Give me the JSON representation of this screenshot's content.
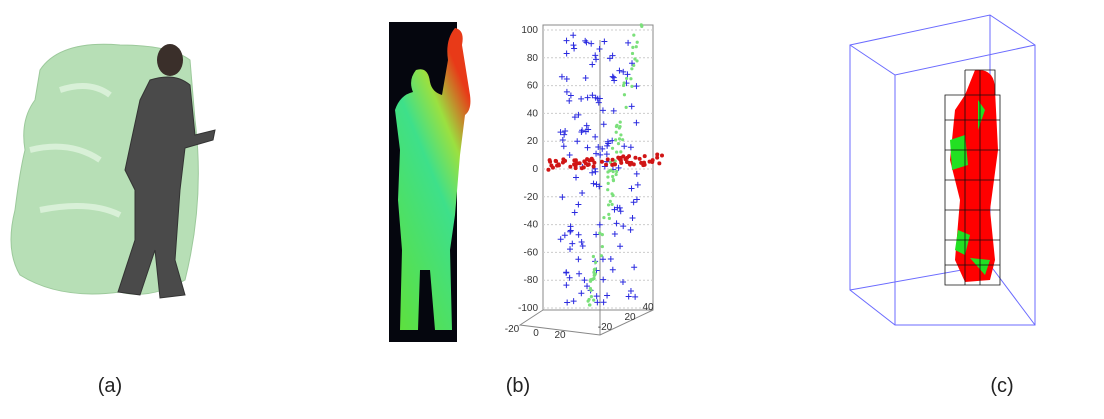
{
  "panels": [
    {
      "caption": "(a)"
    },
    {
      "caption": "(b)",
      "plot": {
        "yticks": [
          100,
          80,
          60,
          40,
          20,
          0,
          -20,
          -40,
          -60,
          -80,
          -100
        ],
        "xticks": [
          -20,
          0,
          20
        ],
        "zticks": [
          -20,
          20,
          40
        ]
      }
    },
    {
      "caption": "(c)"
    }
  ]
}
